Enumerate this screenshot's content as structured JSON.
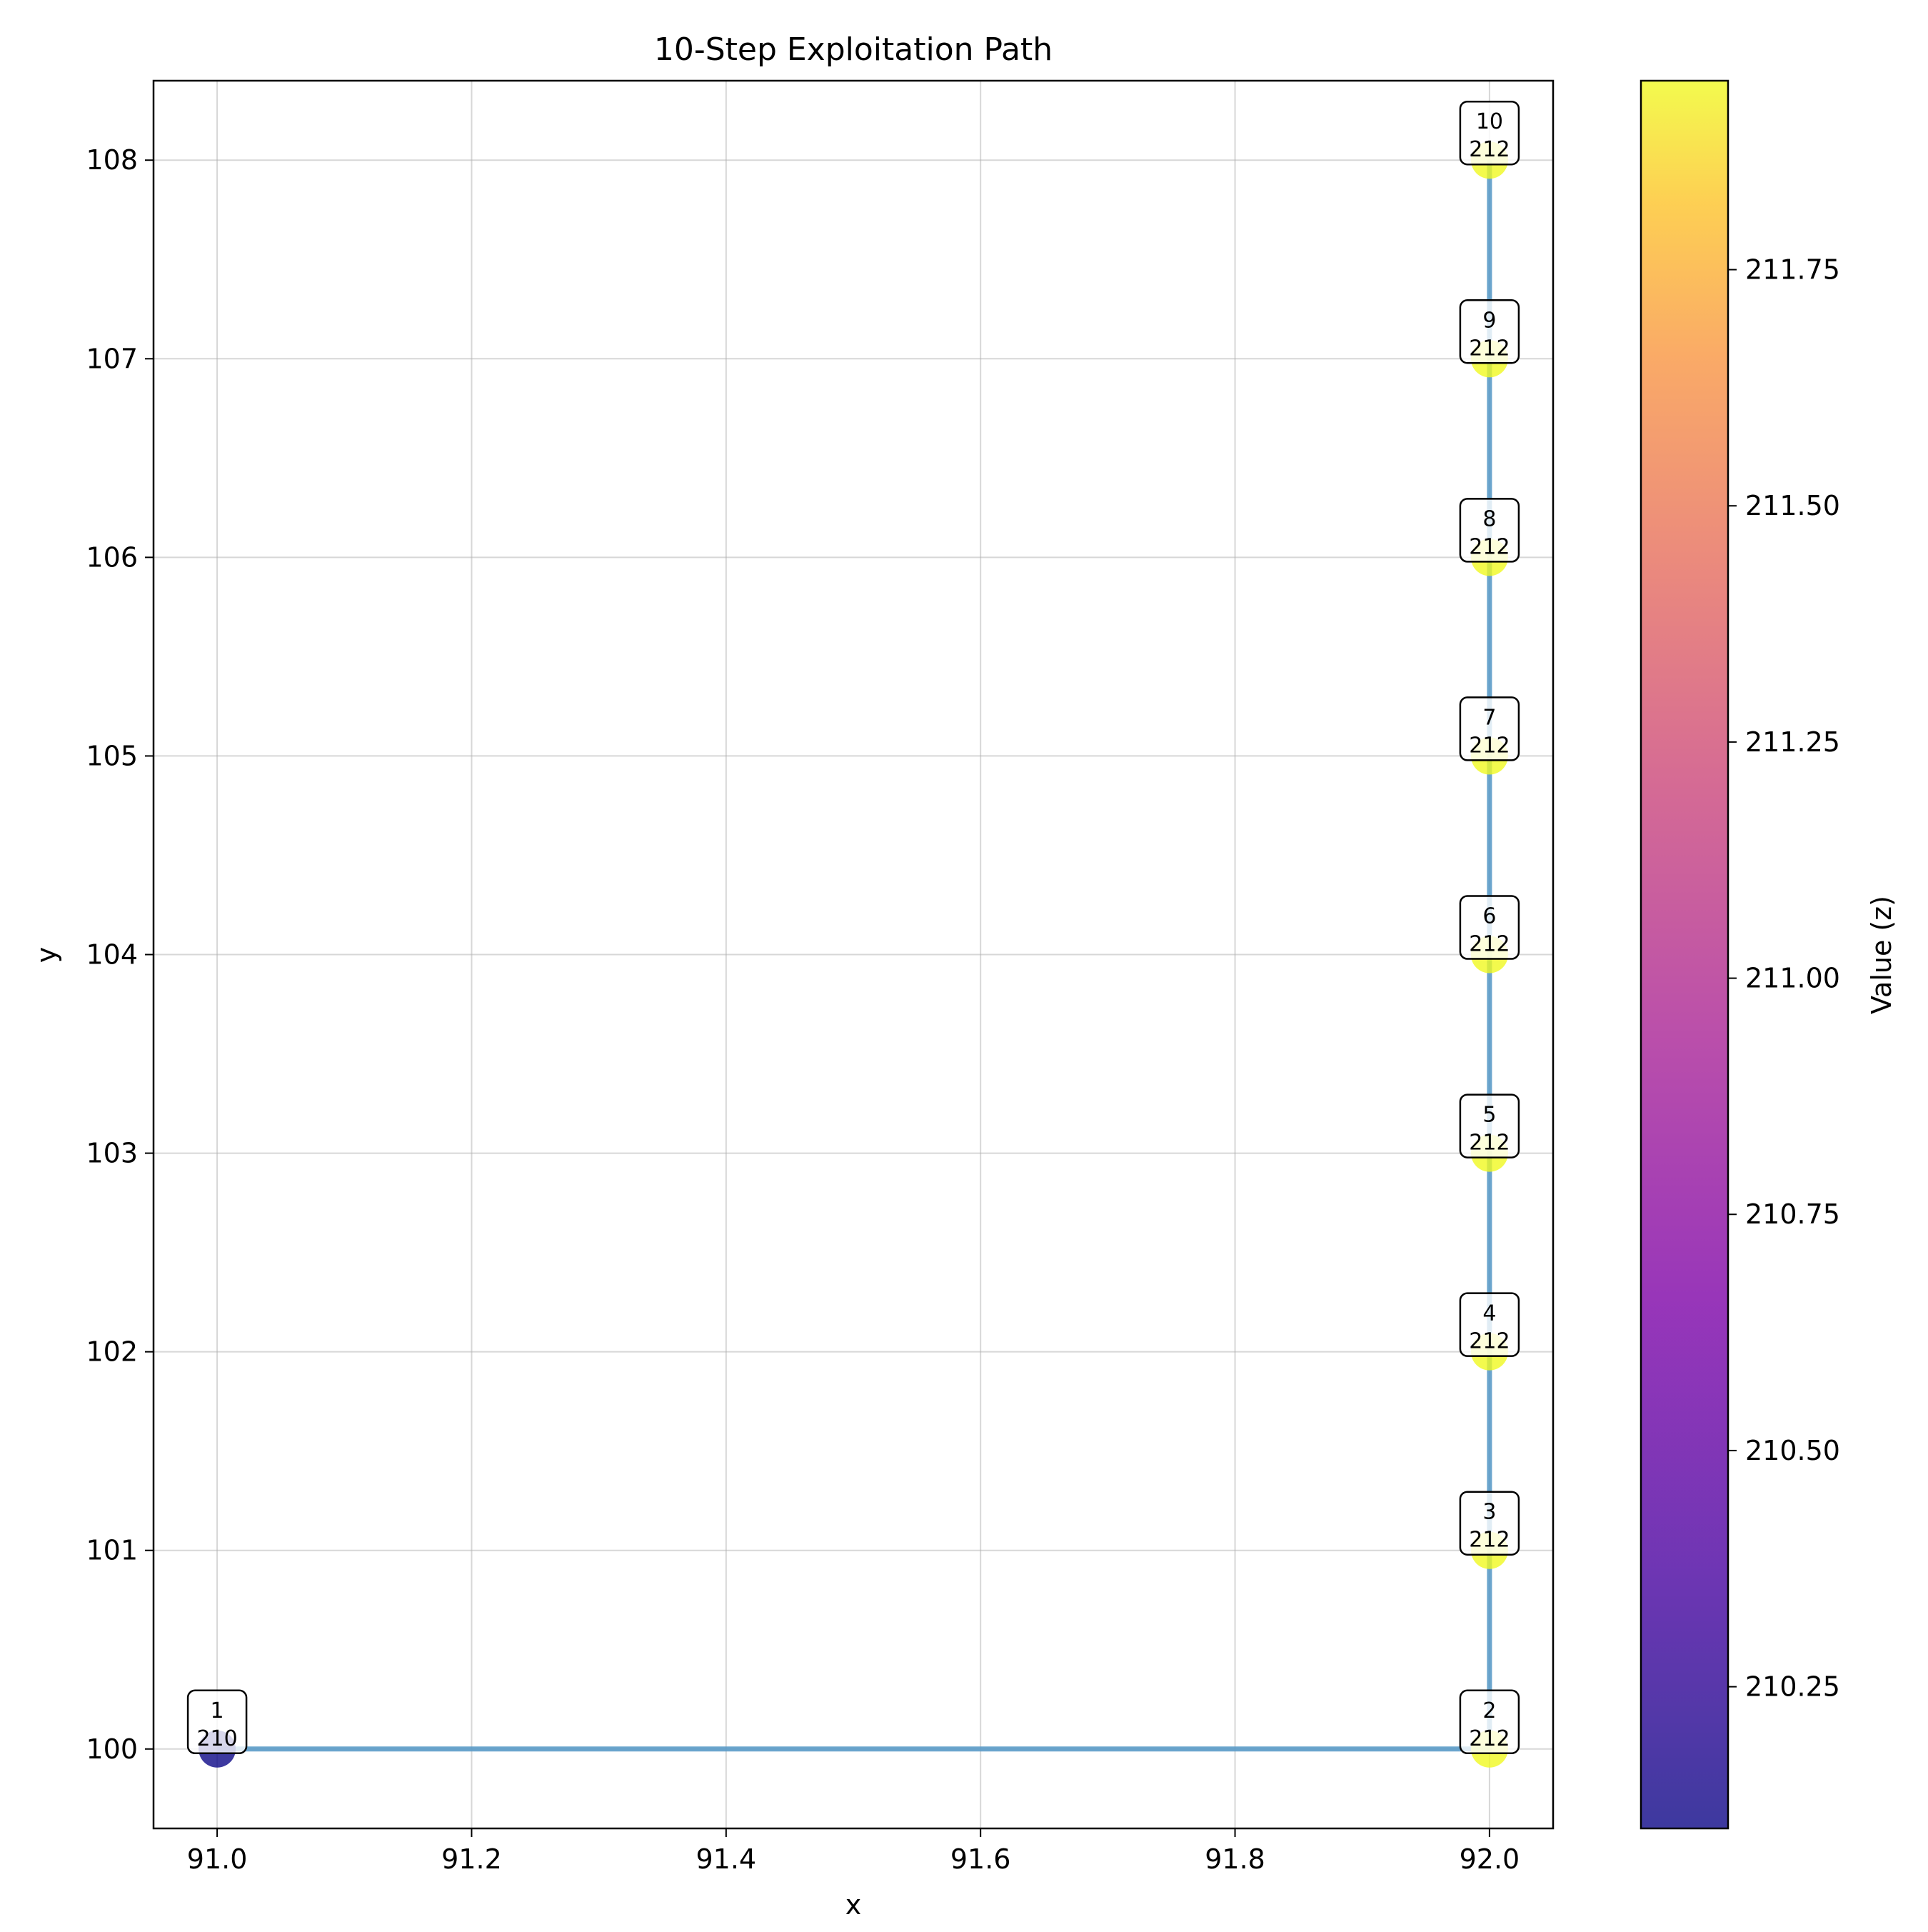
{
  "chart_data": {
    "type": "scatter",
    "title": "10-Step Exploitation Path",
    "xlabel": "x",
    "ylabel": "y",
    "xlim": [
      90.95,
      92.05
    ],
    "ylim": [
      99.6,
      108.4
    ],
    "xticks": [
      91.0,
      91.2,
      91.4,
      91.6,
      91.8,
      92.0
    ],
    "xtick_labels": [
      "91.0",
      "91.2",
      "91.4",
      "91.6",
      "91.8",
      "92.0"
    ],
    "yticks": [
      100,
      101,
      102,
      103,
      104,
      105,
      106,
      107,
      108
    ],
    "ytick_labels": [
      "100",
      "101",
      "102",
      "103",
      "104",
      "105",
      "106",
      "107",
      "108"
    ],
    "grid": true,
    "path_color": "#5b9bc8",
    "colormap": "plasma",
    "colorbar": {
      "label": "Value (z)",
      "range": [
        210.1,
        211.95
      ],
      "ticks": [
        210.25,
        210.5,
        210.75,
        211.0,
        211.25,
        211.5,
        211.75
      ],
      "tick_labels": [
        "210.25",
        "210.50",
        "210.75",
        "211.00",
        "211.25",
        "211.50",
        "211.75"
      ]
    },
    "points": [
      {
        "step": "1",
        "x": 91,
        "y": 100,
        "z": 210.1,
        "label": "210"
      },
      {
        "step": "2",
        "x": 92,
        "y": 100,
        "z": 211.95,
        "label": "212"
      },
      {
        "step": "3",
        "x": 92,
        "y": 101,
        "z": 211.95,
        "label": "212"
      },
      {
        "step": "4",
        "x": 92,
        "y": 102,
        "z": 211.95,
        "label": "212"
      },
      {
        "step": "5",
        "x": 92,
        "y": 103,
        "z": 211.95,
        "label": "212"
      },
      {
        "step": "6",
        "x": 92,
        "y": 104,
        "z": 211.95,
        "label": "212"
      },
      {
        "step": "7",
        "x": 92,
        "y": 105,
        "z": 211.95,
        "label": "212"
      },
      {
        "step": "8",
        "x": 92,
        "y": 106,
        "z": 211.95,
        "label": "212"
      },
      {
        "step": "9",
        "x": 92,
        "y": 107,
        "z": 211.95,
        "label": "212"
      },
      {
        "step": "10",
        "x": 92,
        "y": 108,
        "z": 211.95,
        "label": "212"
      }
    ]
  }
}
